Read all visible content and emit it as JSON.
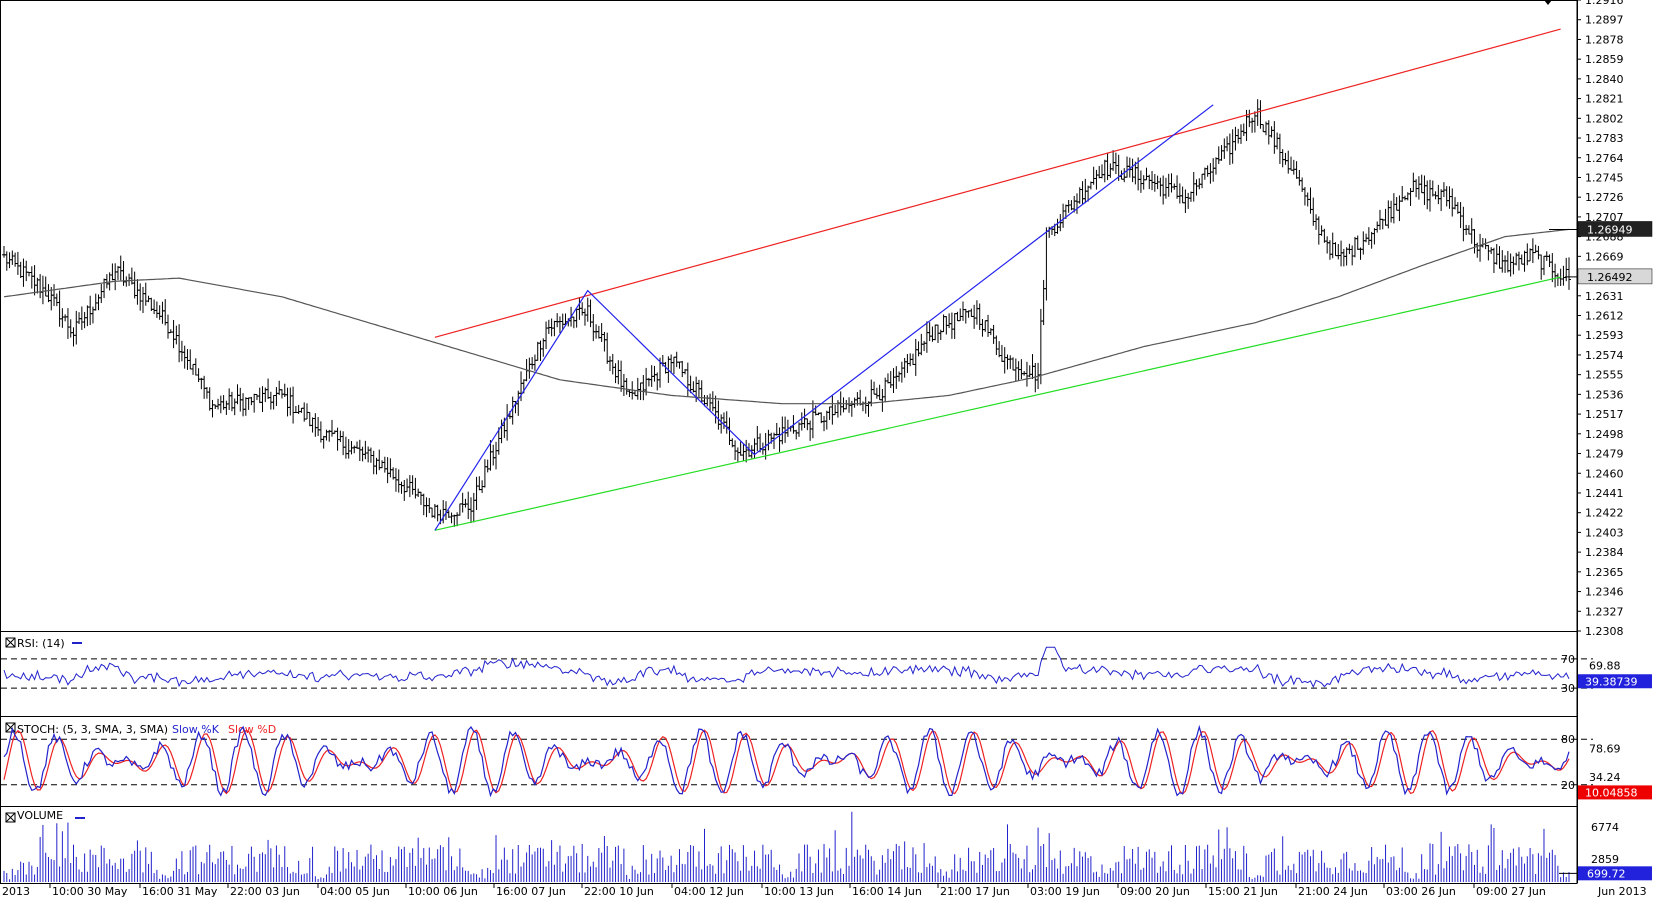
{
  "chart_data": [
    {
      "panel": "price",
      "type": "ohlc",
      "ylim": [
        1.2308,
        1.2916
      ],
      "y_ticks": [
        "1.2916",
        "1.2897",
        "1.2878",
        "1.2859",
        "1.2840",
        "1.2821",
        "1.2802",
        "1.2783",
        "1.2764",
        "1.2745",
        "1.2726",
        "1.2707",
        "1.2688",
        "1.2669",
        "1.2650",
        "1.2631",
        "1.2612",
        "1.2593",
        "1.2574",
        "1.2555",
        "1.2536",
        "1.2517",
        "1.2498",
        "1.2479",
        "1.2460",
        "1.2441",
        "1.2422",
        "1.2403",
        "1.2384",
        "1.2365",
        "1.2346",
        "1.2327",
        "1.2308"
      ],
      "current_price_label": "1.26492",
      "ma_label": "1.26949",
      "close_anchors": [
        [
          0,
          1.2668
        ],
        [
          15,
          1.2635
        ],
        [
          25,
          1.2595
        ],
        [
          40,
          1.2655
        ],
        [
          52,
          1.2625
        ],
        [
          60,
          1.26
        ],
        [
          75,
          1.2525
        ],
        [
          100,
          1.2535
        ],
        [
          115,
          1.2498
        ],
        [
          135,
          1.247
        ],
        [
          155,
          1.2422
        ],
        [
          168,
          1.2428
        ],
        [
          180,
          1.2505
        ],
        [
          195,
          1.26
        ],
        [
          210,
          1.2615
        ],
        [
          225,
          1.253
        ],
        [
          240,
          1.257
        ],
        [
          255,
          1.252
        ],
        [
          265,
          1.248
        ],
        [
          285,
          1.2505
        ],
        [
          300,
          1.252
        ],
        [
          320,
          1.2545
        ],
        [
          335,
          1.26
        ],
        [
          350,
          1.2615
        ],
        [
          360,
          1.257
        ],
        [
          372,
          1.2555
        ],
        [
          375,
          1.269
        ],
        [
          395,
          1.2755
        ],
        [
          410,
          1.2745
        ],
        [
          425,
          1.2725
        ],
        [
          440,
          1.277
        ],
        [
          450,
          1.281
        ],
        [
          465,
          1.2745
        ],
        [
          470,
          1.271
        ],
        [
          480,
          1.2665
        ],
        [
          495,
          1.27
        ],
        [
          505,
          1.2735
        ],
        [
          520,
          1.2725
        ],
        [
          530,
          1.268
        ],
        [
          540,
          1.266
        ],
        [
          550,
          1.267
        ],
        [
          560,
          1.2652
        ],
        [
          563,
          1.2649
        ]
      ],
      "moving_average": [
        [
          0,
          1.263
        ],
        [
          40,
          1.2645
        ],
        [
          63,
          1.2648
        ],
        [
          100,
          1.263
        ],
        [
          150,
          1.259
        ],
        [
          200,
          1.255
        ],
        [
          240,
          1.2535
        ],
        [
          280,
          1.2527
        ],
        [
          310,
          1.2527
        ],
        [
          340,
          1.2535
        ],
        [
          370,
          1.2552
        ],
        [
          410,
          1.2582
        ],
        [
          450,
          1.2605
        ],
        [
          480,
          1.263
        ],
        [
          510,
          1.266
        ],
        [
          540,
          1.2688
        ],
        [
          563,
          1.2695
        ]
      ],
      "annotations": {
        "resistance_line": {
          "color": "#ee2222",
          "from": [
            155,
            1.2591
          ],
          "to": [
            560,
            1.2888
          ]
        },
        "support_line": {
          "color": "#22dd22",
          "from": [
            155,
            1.2405
          ],
          "to": [
            560,
            1.2649
          ]
        },
        "zigzag": {
          "color": "#2222ee",
          "points": [
            [
              155,
              1.2405
            ],
            [
              210,
              1.2636
            ],
            [
              270,
              1.2478
            ],
            [
              435,
              1.2815
            ]
          ]
        },
        "last_close_line": 1.26492,
        "ma_value_line": 1.26949
      }
    },
    {
      "panel": "rsi",
      "type": "line",
      "label": "RSI: (14)",
      "line_color": "#2222cc",
      "ylim": [
        0,
        100
      ],
      "y_ticks": [
        "70",
        "69.88",
        "30"
      ],
      "value_label": "39.38739",
      "levels": [
        70,
        30
      ]
    },
    {
      "panel": "stochastic",
      "type": "line",
      "label_main": "STOCH: (5, 3, SMA, 3, SMA)",
      "series": [
        {
          "name": "Slow %K",
          "color": "#2222cc"
        },
        {
          "name": "Slow %D",
          "color": "#ee2222"
        }
      ],
      "ylim": [
        0,
        100
      ],
      "y_ticks": [
        "80",
        "78.69",
        "34.24",
        "20"
      ],
      "value_label": "10.04858",
      "levels": [
        80,
        20
      ]
    },
    {
      "panel": "volume",
      "type": "bar",
      "label": "VOLUME",
      "bar_color": "#2222cc",
      "ylim": [
        0,
        8500
      ],
      "y_ticks": [
        "6774",
        "2859"
      ],
      "value_label": "699.72"
    }
  ],
  "x_axis": {
    "labels": [
      "2013",
      "10:00 30 May",
      "16:00 31 May",
      "22:00 03 Jun",
      "04:00 05 Jun",
      "10:00 06 Jun",
      "16:00 07 Jun",
      "22:00 10 Jun",
      "04:00 12 Jun",
      "10:00 13 Jun",
      "16:00 14 Jun",
      "21:00 17 Jun",
      "03:00 19 Jun",
      "09:00 20 Jun",
      "15:00 21 Jun",
      "21:00 24 Jun",
      "03:00 26 Jun",
      "09:00 27 Jun",
      "Jun 2013"
    ]
  },
  "colors": {
    "bars": "#000000",
    "moving_average": "#555555",
    "label_box_dark": "#222222",
    "label_box_light": "#d8d8d8",
    "label_box_blue": "#2222dd",
    "label_box_red": "#ee0000"
  }
}
